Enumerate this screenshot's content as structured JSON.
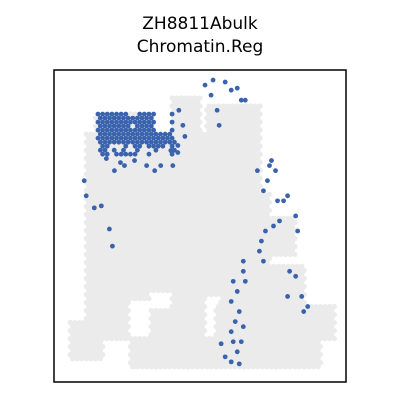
{
  "chart_data": {
    "type": "scatter",
    "title_lines": [
      "ZH8811Abulk",
      "Chromatin.Reg"
    ],
    "xlim": [
      0,
      290
    ],
    "ylim": [
      310,
      0
    ],
    "axes_visible": false,
    "grid": false,
    "legend": "none",
    "colors": {
      "background_spots": "#ebebeb",
      "highlight_spots": "#3a63ad",
      "frame": "#000000"
    },
    "tissue_regions": [
      {
        "x": [
          40,
          100
        ],
        "y": [
          40,
          65
        ]
      },
      {
        "x": [
          30,
          95
        ],
        "y": [
          60,
          230
        ]
      },
      {
        "x": [
          30,
          75
        ],
        "y": [
          230,
          270
        ]
      },
      {
        "x": [
          15,
          50
        ],
        "y": [
          250,
          290
        ]
      },
      {
        "x": [
          95,
          205
        ],
        "y": [
          60,
          140
        ]
      },
      {
        "x": [
          115,
          145
        ],
        "y": [
          25,
          60
        ]
      },
      {
        "x": [
          150,
          205
        ],
        "y": [
          35,
          70
        ]
      },
      {
        "x": [
          95,
          165
        ],
        "y": [
          140,
          225
        ]
      },
      {
        "x": [
          165,
          215
        ],
        "y": [
          120,
          200
        ]
      },
      {
        "x": [
          165,
          250
        ],
        "y": [
          195,
          240
        ]
      },
      {
        "x": [
          160,
          280
        ],
        "y": [
          235,
          270
        ]
      },
      {
        "x": [
          75,
          265
        ],
        "y": [
          265,
          295
        ]
      },
      {
        "x": [
          95,
          150
        ],
        "y": [
          225,
          265
        ]
      },
      {
        "x": [
          215,
          240
        ],
        "y": [
          145,
          185
        ]
      }
    ],
    "tissue_holes": [
      {
        "x": [
          95,
          115
        ],
        "y": [
          220,
          238
        ]
      }
    ],
    "highlight_clusters": [
      {
        "x": [
          42,
          72
        ],
        "y": [
          38,
          75
        ],
        "density": 1.0
      },
      {
        "x": [
          82,
          118
        ],
        "y": [
          42,
          75
        ],
        "density": 1.0
      },
      {
        "x": [
          68,
          86
        ],
        "y": [
          45,
          70
        ],
        "density": 0.8
      },
      {
        "x": [
          44,
          120
        ],
        "y": [
          68,
          88
        ],
        "density": 0.4
      }
    ],
    "highlight_points": [
      [
        30,
        110
      ],
      [
        32,
        125
      ],
      [
        40,
        137
      ],
      [
        47,
        135
      ],
      [
        55,
        158
      ],
      [
        58,
        175
      ],
      [
        60,
        100
      ],
      [
        70,
        95
      ],
      [
        80,
        90
      ],
      [
        92,
        95
      ],
      [
        100,
        100
      ],
      [
        106,
        95
      ],
      [
        118,
        95
      ],
      [
        52,
        88
      ],
      [
        66,
        92
      ],
      [
        116,
        80
      ],
      [
        123,
        75
      ],
      [
        123,
        82
      ],
      [
        124,
        40
      ],
      [
        128,
        55
      ],
      [
        130,
        66
      ],
      [
        150,
        15
      ],
      [
        156,
        25
      ],
      [
        158,
        10
      ],
      [
        162,
        40
      ],
      [
        164,
        55
      ],
      [
        170,
        12
      ],
      [
        176,
        20
      ],
      [
        182,
        18
      ],
      [
        186,
        30
      ],
      [
        190,
        30
      ],
      [
        202,
        100
      ],
      [
        208,
        120
      ],
      [
        214,
        95
      ],
      [
        216,
        90
      ],
      [
        212,
        110
      ],
      [
        220,
        100
      ],
      [
        222,
        130
      ],
      [
        228,
        130
      ],
      [
        224,
        150
      ],
      [
        232,
        125
      ],
      [
        240,
        145
      ],
      [
        242,
        160
      ],
      [
        218,
        155
      ],
      [
        210,
        160
      ],
      [
        206,
        170
      ],
      [
        204,
        180
      ],
      [
        208,
        190
      ],
      [
        188,
        190
      ],
      [
        188,
        200
      ],
      [
        190,
        210
      ],
      [
        178,
        210
      ],
      [
        182,
        220
      ],
      [
        176,
        230
      ],
      [
        184,
        240
      ],
      [
        180,
        250
      ],
      [
        188,
        255
      ],
      [
        176,
        260
      ],
      [
        178,
        270
      ],
      [
        186,
        270
      ],
      [
        182,
        280
      ],
      [
        176,
        290
      ],
      [
        170,
        285
      ],
      [
        184,
        292
      ],
      [
        166,
        272
      ],
      [
        234,
        200
      ],
      [
        240,
        205
      ],
      [
        232,
        225
      ],
      [
        246,
        225
      ],
      [
        252,
        235
      ],
      [
        248,
        240
      ]
    ]
  }
}
